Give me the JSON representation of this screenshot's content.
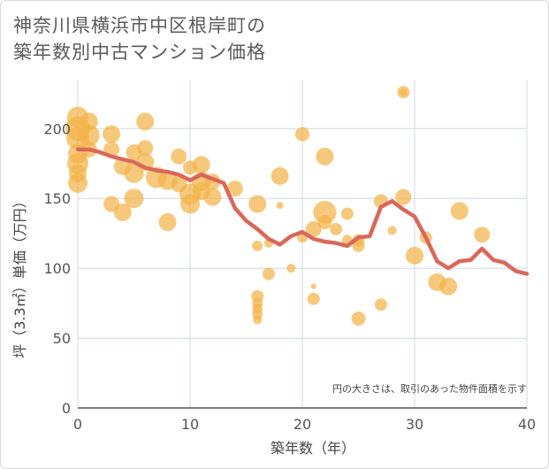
{
  "title_line1": "神奈川県横浜市中区根岸町の",
  "title_line2": "築年数別中古マンション価格",
  "chart_data": {
    "type": "scatter",
    "xlabel": "築年数（年）",
    "ylabel": "坪（3.3㎡）単価（万円）",
    "xlim": [
      0,
      40
    ],
    "ylim": [
      0,
      235
    ],
    "xticks": [
      0,
      10,
      20,
      30,
      40
    ],
    "yticks": [
      0,
      50,
      100,
      150,
      200
    ],
    "grid": true,
    "note": "円の大きさは、取引のあった物件面積を示す",
    "colors": {
      "bubble": "#f2b34a",
      "line": "#d9685a",
      "grid": "#cfd8e3"
    },
    "line_series": {
      "x": [
        0,
        1,
        2,
        3,
        4,
        5,
        6,
        7,
        8,
        9,
        10,
        11,
        12,
        13,
        14,
        15,
        16,
        17,
        18,
        19,
        20,
        21,
        22,
        23,
        24,
        25,
        26,
        27,
        28,
        29,
        30,
        31,
        32,
        33,
        34,
        35,
        36,
        37,
        38,
        39,
        40
      ],
      "y": [
        185,
        185,
        183,
        180,
        178,
        176,
        172,
        170,
        169,
        167,
        163,
        167,
        164,
        161,
        143,
        134,
        128,
        121,
        117,
        123,
        126,
        121,
        119,
        118,
        116,
        122,
        123,
        144,
        148,
        142,
        137,
        122,
        105,
        100,
        105,
        106,
        114,
        106,
        104,
        98,
        96
      ]
    },
    "bubbles": [
      {
        "x": 0,
        "y": 208,
        "r": 12
      },
      {
        "x": 0,
        "y": 200,
        "r": 14
      },
      {
        "x": 0,
        "y": 193,
        "r": 13
      },
      {
        "x": 0,
        "y": 182,
        "r": 11
      },
      {
        "x": 0,
        "y": 175,
        "r": 12
      },
      {
        "x": 0,
        "y": 168,
        "r": 10
      },
      {
        "x": 0,
        "y": 161,
        "r": 11
      },
      {
        "x": 1,
        "y": 205,
        "r": 10
      },
      {
        "x": 1,
        "y": 195,
        "r": 12
      },
      {
        "x": 1,
        "y": 185,
        "r": 9
      },
      {
        "x": 3,
        "y": 196,
        "r": 10
      },
      {
        "x": 3,
        "y": 185,
        "r": 9
      },
      {
        "x": 3,
        "y": 146,
        "r": 9
      },
      {
        "x": 4,
        "y": 173,
        "r": 10
      },
      {
        "x": 4,
        "y": 140,
        "r": 10
      },
      {
        "x": 5,
        "y": 183,
        "r": 9
      },
      {
        "x": 5,
        "y": 168,
        "r": 11
      },
      {
        "x": 5,
        "y": 150,
        "r": 11
      },
      {
        "x": 6,
        "y": 205,
        "r": 10
      },
      {
        "x": 6,
        "y": 186,
        "r": 9
      },
      {
        "x": 6,
        "y": 176,
        "r": 10
      },
      {
        "x": 7,
        "y": 165,
        "r": 12
      },
      {
        "x": 8,
        "y": 163,
        "r": 11
      },
      {
        "x": 8,
        "y": 133,
        "r": 10
      },
      {
        "x": 9,
        "y": 180,
        "r": 9
      },
      {
        "x": 9,
        "y": 160,
        "r": 9
      },
      {
        "x": 10,
        "y": 172,
        "r": 8
      },
      {
        "x": 10,
        "y": 153,
        "r": 12
      },
      {
        "x": 10,
        "y": 146,
        "r": 11
      },
      {
        "x": 11,
        "y": 174,
        "r": 10
      },
      {
        "x": 11,
        "y": 162,
        "r": 11
      },
      {
        "x": 11,
        "y": 155,
        "r": 10
      },
      {
        "x": 12,
        "y": 151,
        "r": 10
      },
      {
        "x": 12,
        "y": 162,
        "r": 9
      },
      {
        "x": 14,
        "y": 157,
        "r": 9
      },
      {
        "x": 16,
        "y": 146,
        "r": 10
      },
      {
        "x": 16,
        "y": 116,
        "r": 6
      },
      {
        "x": 16,
        "y": 80,
        "r": 7
      },
      {
        "x": 16,
        "y": 75,
        "r": 6
      },
      {
        "x": 16,
        "y": 71,
        "r": 6
      },
      {
        "x": 16,
        "y": 67,
        "r": 6
      },
      {
        "x": 16,
        "y": 63,
        "r": 5
      },
      {
        "x": 17,
        "y": 96,
        "r": 7
      },
      {
        "x": 17,
        "y": 118,
        "r": 5
      },
      {
        "x": 18,
        "y": 166,
        "r": 10
      },
      {
        "x": 18,
        "y": 145,
        "r": 4
      },
      {
        "x": 19,
        "y": 100,
        "r": 5
      },
      {
        "x": 20,
        "y": 196,
        "r": 8
      },
      {
        "x": 20,
        "y": 122,
        "r": 6
      },
      {
        "x": 21,
        "y": 128,
        "r": 9
      },
      {
        "x": 21,
        "y": 87,
        "r": 3
      },
      {
        "x": 21,
        "y": 78,
        "r": 7
      },
      {
        "x": 22,
        "y": 180,
        "r": 10
      },
      {
        "x": 22,
        "y": 140,
        "r": 13
      },
      {
        "x": 22,
        "y": 133,
        "r": 8
      },
      {
        "x": 23,
        "y": 128,
        "r": 7
      },
      {
        "x": 24,
        "y": 139,
        "r": 7
      },
      {
        "x": 24,
        "y": 120,
        "r": 6
      },
      {
        "x": 25,
        "y": 120,
        "r": 7
      },
      {
        "x": 25,
        "y": 116,
        "r": 7
      },
      {
        "x": 25,
        "y": 64,
        "r": 8
      },
      {
        "x": 27,
        "y": 148,
        "r": 8
      },
      {
        "x": 27,
        "y": 74,
        "r": 7
      },
      {
        "x": 28,
        "y": 127,
        "r": 5
      },
      {
        "x": 29,
        "y": 226,
        "r": 7
      },
      {
        "x": 29,
        "y": 226,
        "r": 4
      },
      {
        "x": 29,
        "y": 151,
        "r": 9
      },
      {
        "x": 30,
        "y": 109,
        "r": 10
      },
      {
        "x": 31,
        "y": 122,
        "r": 7
      },
      {
        "x": 32,
        "y": 90,
        "r": 10
      },
      {
        "x": 33,
        "y": 87,
        "r": 10
      },
      {
        "x": 34,
        "y": 141,
        "r": 10
      },
      {
        "x": 36,
        "y": 124,
        "r": 9
      }
    ]
  }
}
